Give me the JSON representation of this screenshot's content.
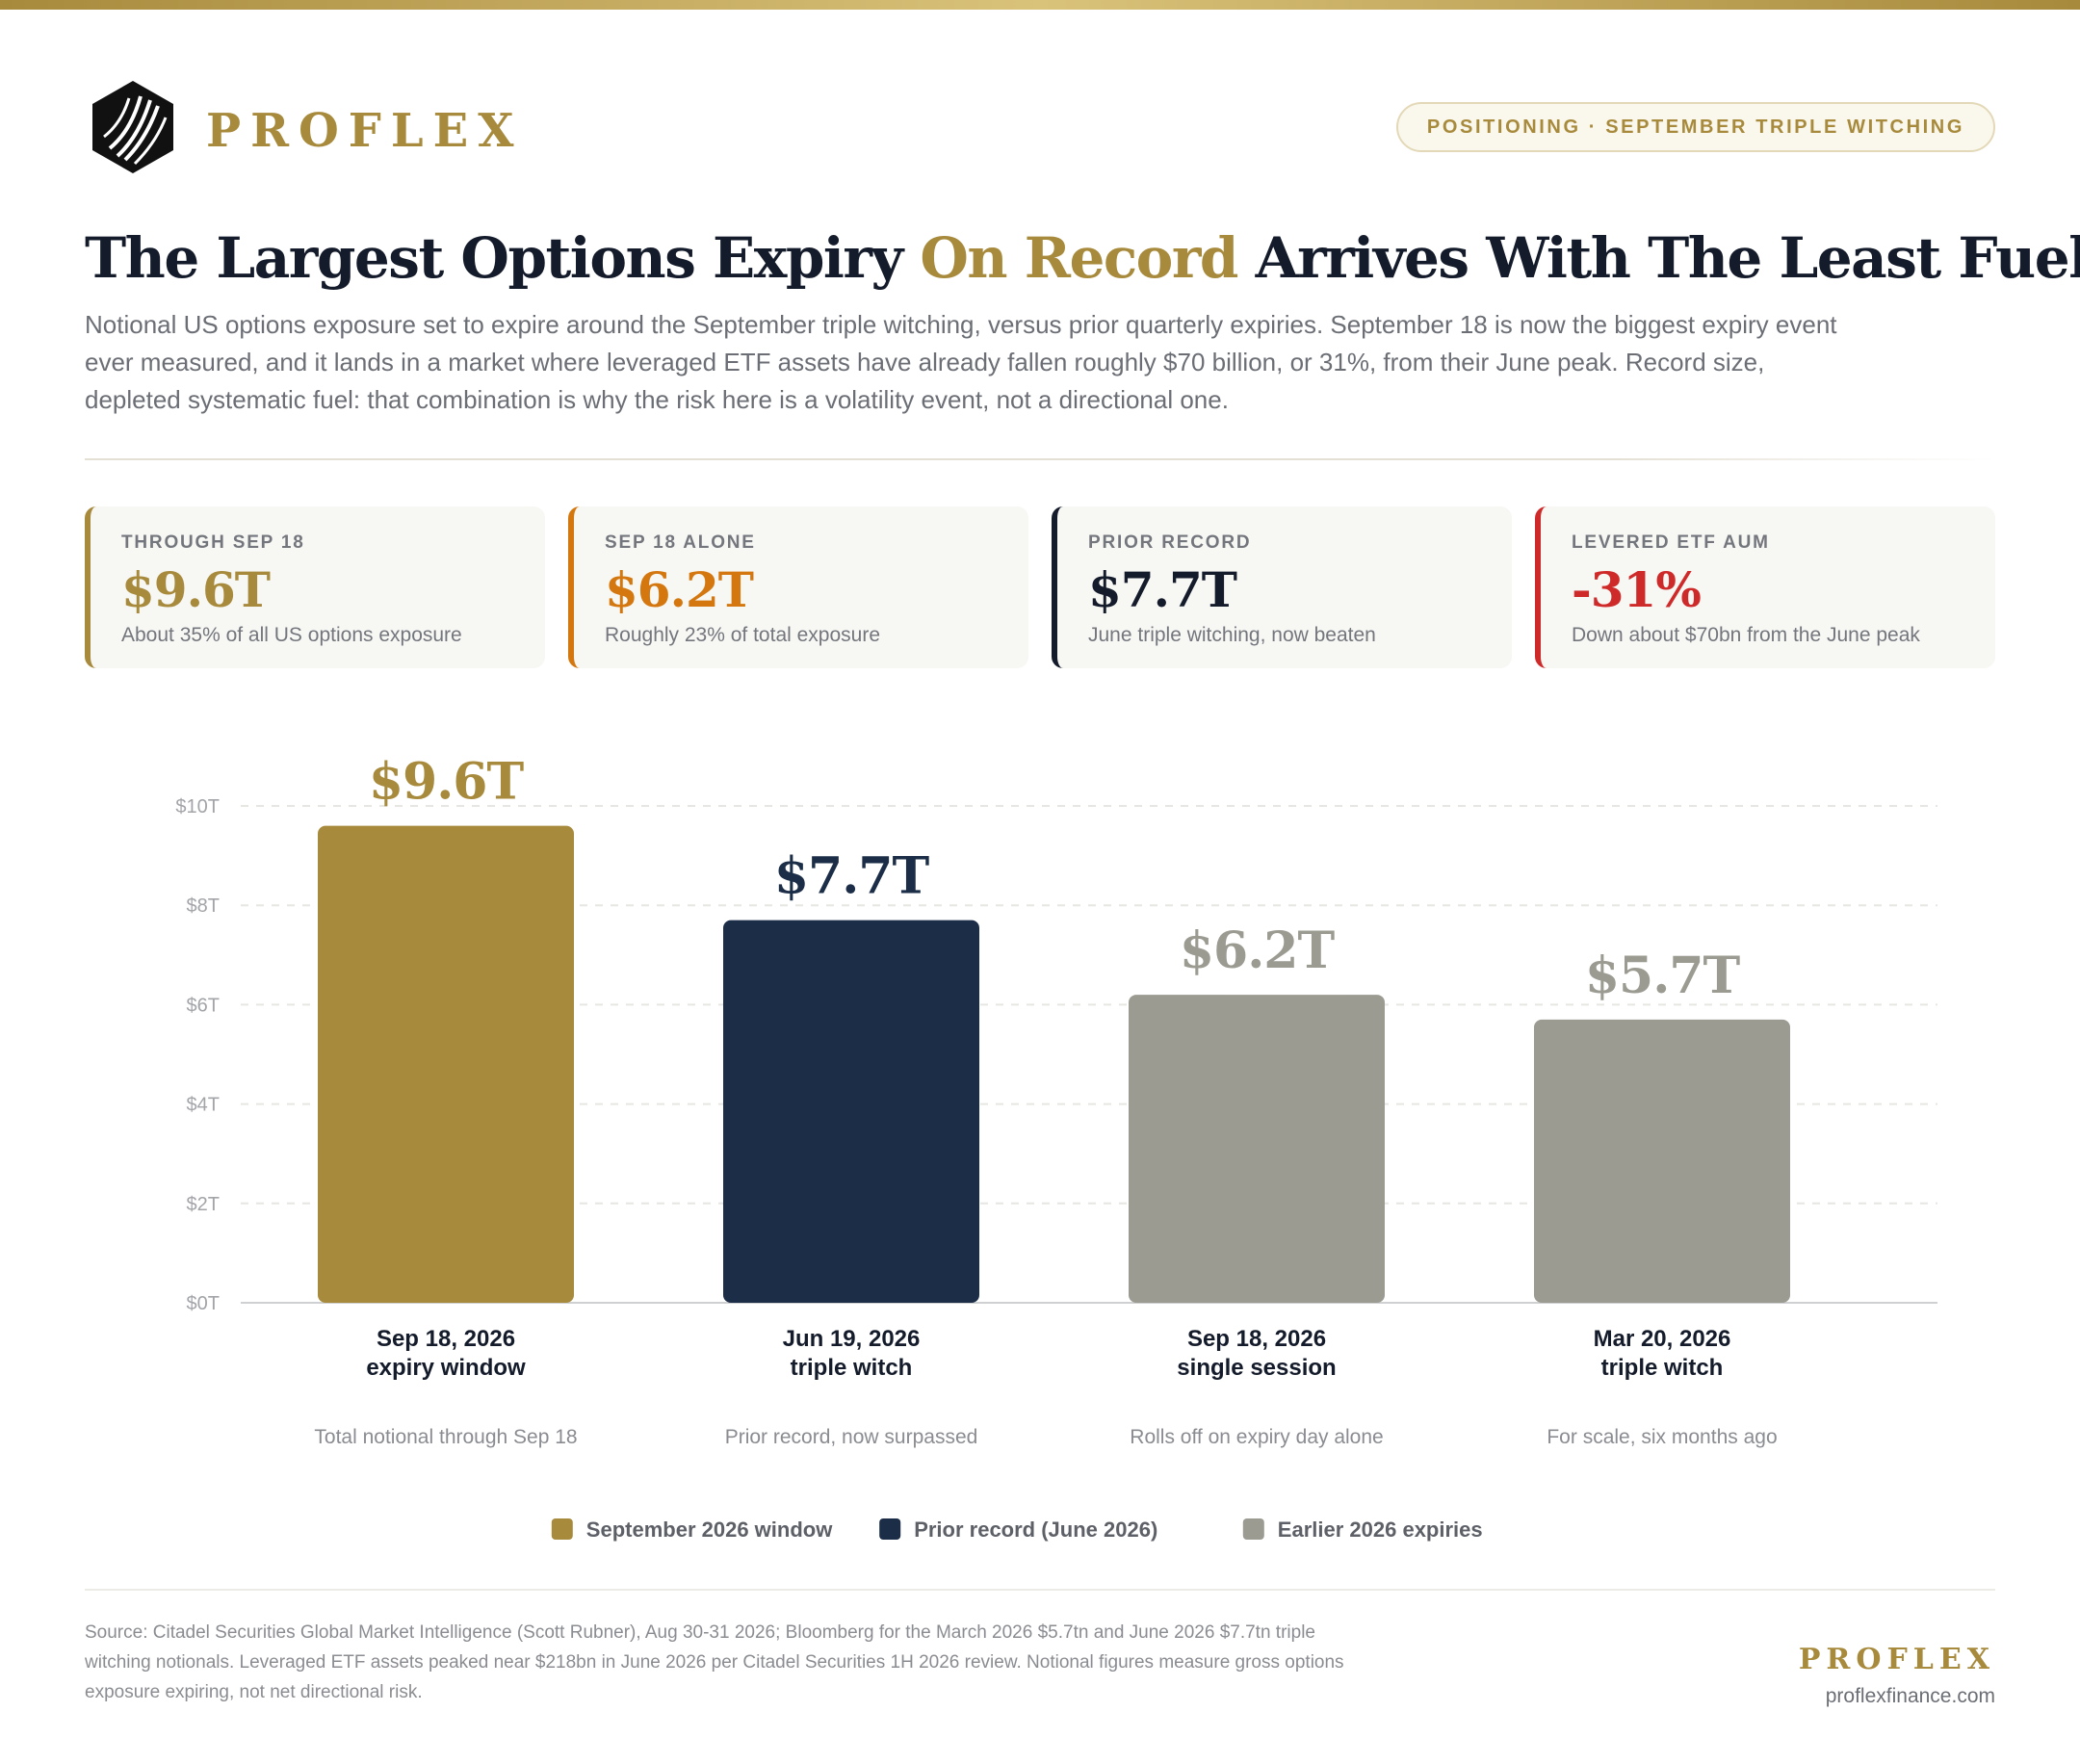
{
  "brand": {
    "name": "PROFLEX",
    "website": "proflexfinance.com"
  },
  "tag": "POSITIONING · SEPTEMBER TRIPLE WITCHING",
  "headline": {
    "part1": "The Largest Options Expiry ",
    "accent": "On Record",
    "part2": " Arrives With The Least Fuel"
  },
  "description": "Notional US options exposure set to expire around the September triple witching, versus prior quarterly expiries. September 18 is now the biggest expiry event ever measured, and it lands in a market where leveraged ETF assets have already fallen roughly $70 billion, or 31%, from their June peak. Record size, depleted systematic fuel: that combination is why the risk here is a volatility event, not a directional one.",
  "cards": [
    {
      "label": "THROUGH SEP 18",
      "value": "$9.6T",
      "sub": "About 35% of all US options exposure",
      "color": "#a88a3c"
    },
    {
      "label": "SEP 18 ALONE",
      "value": "$6.2T",
      "sub": "Roughly 23% of total exposure",
      "color": "#d4770f"
    },
    {
      "label": "PRIOR RECORD",
      "value": "$7.7T",
      "sub": "June triple witching, now beaten",
      "color": "#141b2b"
    },
    {
      "label": "LEVERED ETF AUM",
      "value": "-31%",
      "sub": "Down about $70bn from the June peak",
      "color": "#cf2a2a"
    }
  ],
  "chart_data": {
    "type": "bar",
    "categories": [
      {
        "line1": "Sep 18, 2026",
        "line2": "expiry window",
        "note": "Total notional through Sep 18"
      },
      {
        "line1": "Jun 19, 2026",
        "line2": "triple witch",
        "note": "Prior record, now surpassed"
      },
      {
        "line1": "Sep 18, 2026",
        "line2": "single session",
        "note": "Rolls off on expiry day alone"
      },
      {
        "line1": "Mar 20, 2026",
        "line2": "triple witch",
        "note": "For scale, six months ago"
      }
    ],
    "values": [
      9.6,
      7.7,
      6.2,
      5.7
    ],
    "value_labels": [
      "$9.6T",
      "$7.7T",
      "$6.2T",
      "$5.7T"
    ],
    "bar_colors": [
      "#a88a3c",
      "#1b2d47",
      "#9b9b92",
      "#9b9b92"
    ],
    "label_colors": [
      "#a88a3c",
      "#1b2d47",
      "#9b9b92",
      "#9b9b92"
    ],
    "ylim": [
      0,
      10
    ],
    "yticks": [
      0,
      2,
      4,
      6,
      8,
      10
    ],
    "ytick_labels": [
      "$0T",
      "$2T",
      "$4T",
      "$6T",
      "$8T",
      "$10T"
    ],
    "grid": true,
    "legend_position": "bottom-center",
    "legend": [
      {
        "label": "September 2026 window",
        "color": "#a88a3c"
      },
      {
        "label": "Prior record (June 2026)",
        "color": "#1b2d47"
      },
      {
        "label": "Earlier 2026 expiries",
        "color": "#9b9b92"
      }
    ]
  },
  "source": "Source: Citadel Securities Global Market Intelligence (Scott Rubner), Aug 30-31 2026; Bloomberg for the March 2026 $5.7tn and June 2026 $7.7tn triple witching notionals. Leveraged ETF assets peaked near $218bn in June 2026 per Citadel Securities 1H 2026 review. Notional figures measure gross options exposure expiring, not net directional risk."
}
